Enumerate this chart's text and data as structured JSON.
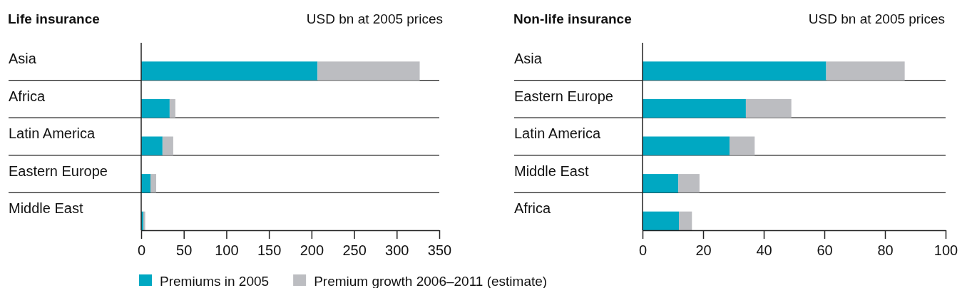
{
  "chart_data": [
    {
      "type": "bar",
      "orientation": "horizontal",
      "stacked": true,
      "title": "Life insurance",
      "subtitle": "USD bn at 2005 prices",
      "categories": [
        "Asia",
        "Africa",
        "Latin America",
        "Eastern Europe",
        "Middle East"
      ],
      "series": [
        {
          "name": "Premiums in 2005",
          "color": "#00a8c2",
          "values": [
            207,
            33.4,
            25,
            10.9,
            2.5
          ]
        },
        {
          "name": "Premium growth 2006–2011 (estimate)",
          "color": "#bcbdc1",
          "values": [
            120,
            6.7,
            12.6,
            6.7,
            2.2
          ]
        }
      ],
      "xlim": [
        0,
        350
      ],
      "xticks": [
        0,
        50,
        100,
        150,
        200,
        250,
        300,
        350
      ],
      "grid": false,
      "legend": "bottom"
    },
    {
      "type": "bar",
      "orientation": "horizontal",
      "stacked": true,
      "title": "Non-life insurance",
      "subtitle": "USD bn at 2005 prices",
      "categories": [
        "Asia",
        "Eastern Europe",
        "Latin America",
        "Middle East",
        "Africa"
      ],
      "series": [
        {
          "color": "#00a8c2",
          "values": [
            60.6,
            34.1,
            28.7,
            11.8,
            12
          ]
        },
        {
          "color": "#bcbdc1",
          "values": [
            25.9,
            15,
            8.3,
            7,
            4.3
          ]
        }
      ],
      "xlim": [
        0,
        100
      ],
      "xticks": [
        0,
        20,
        40,
        60,
        80,
        100
      ],
      "grid": false
    }
  ]
}
